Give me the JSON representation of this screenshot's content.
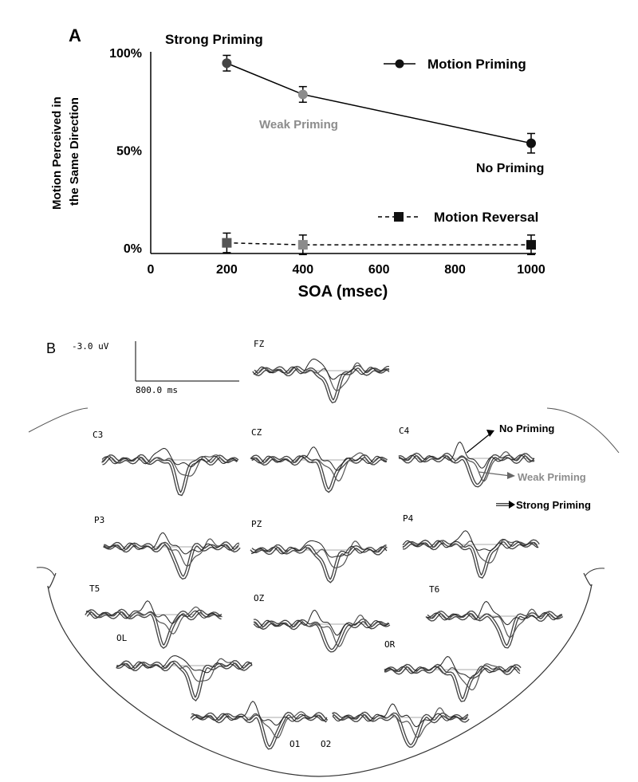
{
  "panel_a": {
    "label": "A",
    "annotations": {
      "strong": "Strong Priming",
      "weak": "Weak Priming",
      "none": "No Priming"
    }
  },
  "panel_b": {
    "label": "B",
    "scale_voltage": "-3.0 uV",
    "scale_time": "800.0 ms",
    "legend": {
      "no_priming": "No Priming",
      "weak_priming": "Weak Priming",
      "strong_priming": "Strong Priming"
    },
    "electrodes": [
      "FZ",
      "C3",
      "CZ",
      "C4",
      "P3",
      "PZ",
      "P4",
      "T5",
      "OZ",
      "T6",
      "OL",
      "OR",
      "O1",
      "O2"
    ],
    "colors": {
      "strong": "#444444",
      "weak": "#555555",
      "none": "#222222"
    }
  },
  "chart_data": {
    "type": "line",
    "xlabel": "SOA (msec)",
    "ylabel": "Motion Perceived in\nthe Same Direction",
    "xlim": [
      0,
      1000
    ],
    "ylim": [
      0,
      100
    ],
    "xticks": [
      "0",
      "200",
      "400",
      "600",
      "800",
      "1000"
    ],
    "yticks": [
      "0%",
      "50%",
      "100%"
    ],
    "grid": false,
    "legend_placement": "right",
    "series": [
      {
        "name": "Motion Priming",
        "x": [
          200,
          400,
          1000
        ],
        "y": [
          95,
          79,
          54
        ],
        "err": [
          4,
          4,
          5
        ],
        "marker": "circle",
        "linestyle": "solid",
        "point_colors": [
          "#444444",
          "#8c8c8c",
          "#111111"
        ]
      },
      {
        "name": "Motion Reversal",
        "x": [
          200,
          400,
          1000
        ],
        "y": [
          3,
          2,
          2
        ],
        "err": [
          5,
          5,
          5
        ],
        "marker": "square",
        "linestyle": "dashed",
        "point_colors": [
          "#555555",
          "#8c8c8c",
          "#111111"
        ]
      }
    ]
  }
}
